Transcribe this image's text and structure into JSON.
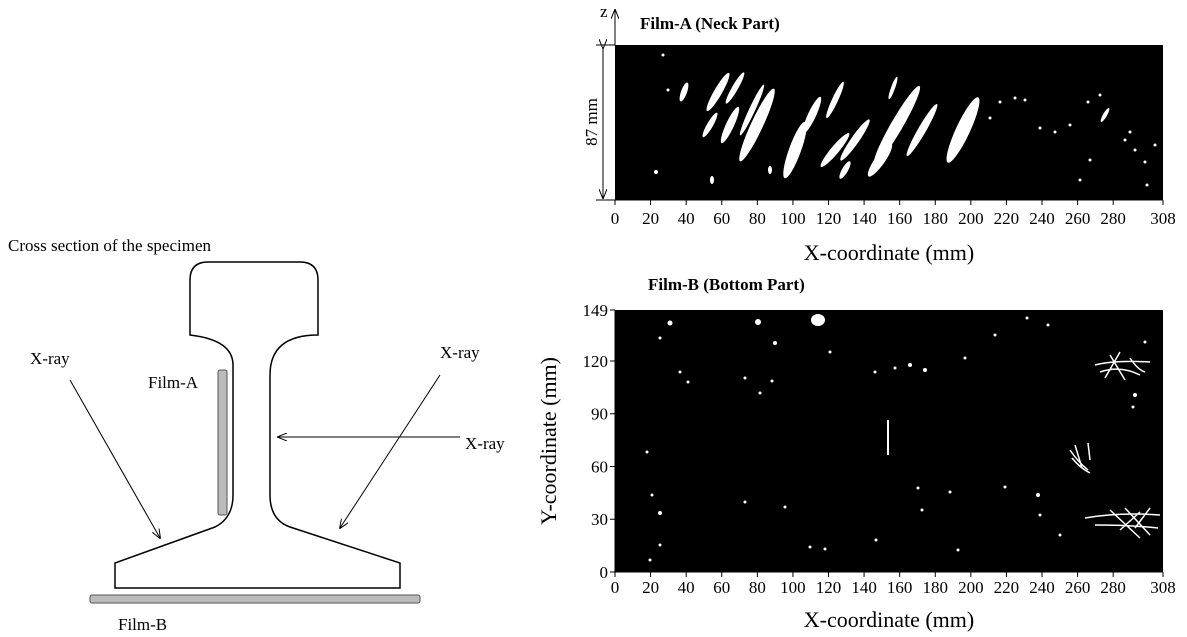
{
  "diagram": {
    "caption": "Cross section of the specimen",
    "labels": {
      "film_a": "Film-A",
      "film_b": "Film-B",
      "xray_left": "X-ray",
      "xray_right": "X-ray",
      "xray_middle": "X-ray"
    }
  },
  "film_a": {
    "title": "Film-A (Neck Part)",
    "z_axis": "z",
    "height_label": "87 mm",
    "xlabel": "X-coordinate (mm)",
    "xlim": [
      0,
      308
    ],
    "xticks": [
      0,
      20,
      40,
      60,
      80,
      100,
      120,
      140,
      160,
      180,
      200,
      220,
      240,
      260,
      280,
      308
    ]
  },
  "film_b": {
    "title": "Film-B (Bottom Part)",
    "xlabel": "X-coordinate (mm)",
    "ylabel": "Y-coordinate (mm)",
    "xlim": [
      0,
      308
    ],
    "ylim": [
      0,
      149
    ],
    "xticks": [
      0,
      20,
      40,
      60,
      80,
      100,
      120,
      140,
      160,
      180,
      200,
      220,
      240,
      260,
      280,
      308
    ],
    "yticks": [
      0,
      30,
      60,
      90,
      120,
      149
    ]
  }
}
